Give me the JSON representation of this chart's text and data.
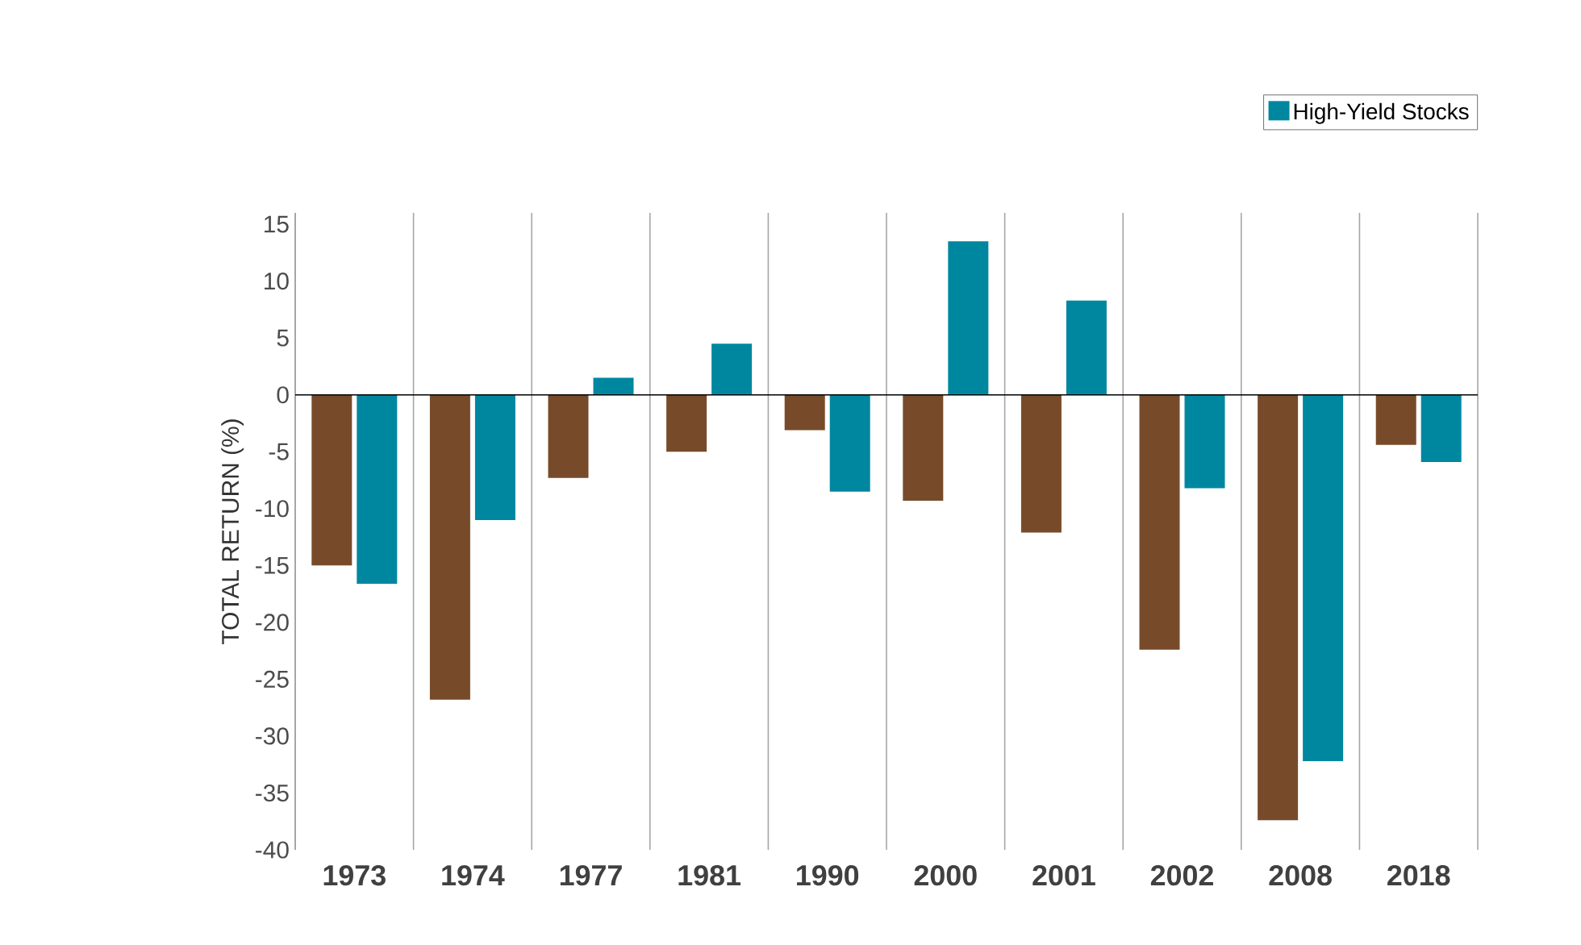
{
  "chart_data": {
    "type": "bar",
    "ylabel": "TOTAL RETURN (%)",
    "categories": [
      "1973",
      "1974",
      "1977",
      "1981",
      "1990",
      "2000",
      "2001",
      "2002",
      "2008",
      "2018"
    ],
    "series": [
      {
        "color": "#774b2a",
        "values": [
          -15.0,
          -26.8,
          -7.3,
          -5.0,
          -3.1,
          -9.3,
          -12.1,
          -22.4,
          -37.4,
          -4.4
        ]
      },
      {
        "name": "High-Yield Stocks",
        "color": "#0087a0",
        "values": [
          -16.6,
          -11.0,
          1.5,
          4.5,
          -8.5,
          13.5,
          8.3,
          -8.2,
          -32.2,
          -5.9
        ]
      }
    ],
    "ylim": [
      -40,
      16
    ],
    "yticks": [
      -40,
      -35,
      -30,
      -25,
      -20,
      -15,
      -10,
      -5,
      0,
      5,
      10,
      15
    ],
    "grid": "x",
    "legend": "top right"
  }
}
